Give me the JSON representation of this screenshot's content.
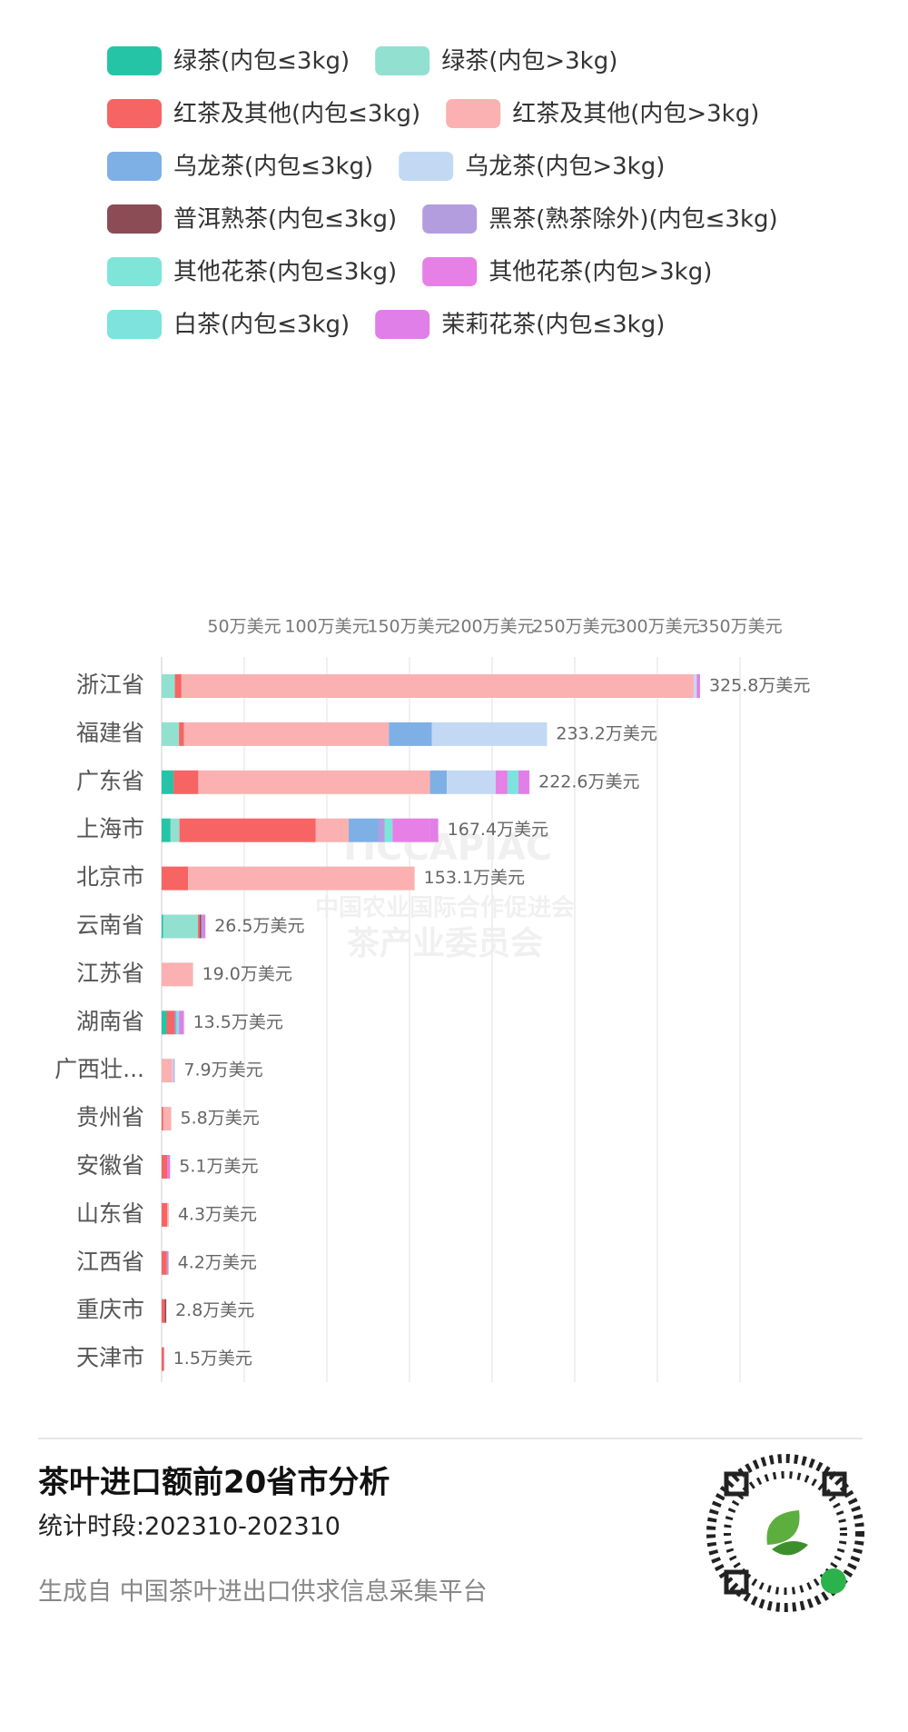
{
  "chart_data": {
    "type": "stacked-barh",
    "categories": [
      "浙江省",
      "福建省",
      "广东省",
      "上海市",
      "北京市",
      "云南省",
      "江苏省",
      "湖南省",
      "广西壮...",
      "贵州省",
      "安徽省",
      "山东省",
      "江西省",
      "重庆市",
      "天津市"
    ],
    "values": [
      325.8,
      233.2,
      222.6,
      167.4,
      153.1,
      26.5,
      19.0,
      13.5,
      7.9,
      5.8,
      5.1,
      4.3,
      4.2,
      2.8,
      1.5
    ],
    "value_labels": [
      "325.8万美元",
      "233.2万美元",
      "222.6万美元",
      "167.4万美元",
      "153.1万美元",
      "26.5万美元",
      "19.0万美元",
      "13.5万美元",
      "7.9万美元",
      "5.8万美元",
      "5.1万美元",
      "4.3万美元",
      "4.2万美元",
      "2.8万美元",
      "1.5万美元"
    ],
    "series": [
      {
        "name": "绿茶(内包≤3kg)",
        "color": "#26c4a6",
        "values": [
          0,
          0,
          7.2,
          5.4,
          0,
          1,
          0,
          3,
          0,
          0,
          0,
          0,
          0,
          0,
          0
        ]
      },
      {
        "name": "绿茶(内包>3kg)",
        "color": "#92e0d0",
        "values": [
          8,
          10.5,
          0,
          5.4,
          0,
          21,
          0,
          0,
          0,
          0,
          0,
          0,
          0,
          0,
          0
        ]
      },
      {
        "name": "红茶及其他(内包≤3kg)",
        "color": "#f76464",
        "values": [
          4,
          3,
          15.0,
          82.5,
          16,
          1,
          0,
          5,
          0,
          1,
          3.5,
          3.3,
          3.2,
          1.8,
          1.5
        ]
      },
      {
        "name": "红茶及其他(内包>3kg)",
        "color": "#fbb1b1",
        "values": [
          310,
          124,
          140.2,
          19.9,
          137.1,
          0,
          19.0,
          0,
          6.5,
          4.8,
          0,
          1.0,
          0,
          0,
          0
        ]
      },
      {
        "name": "乌龙茶(内包≤3kg)",
        "color": "#7eb0e6",
        "values": [
          0,
          26,
          10.2,
          18.1,
          0,
          0,
          0,
          1,
          0,
          0,
          0,
          0,
          0,
          0,
          0
        ]
      },
      {
        "name": "乌龙茶(内包>3kg)",
        "color": "#c3d9f3",
        "values": [
          1.8,
          69.7,
          29.5,
          0,
          0,
          0,
          0,
          0,
          0.8,
          0,
          0,
          0,
          0,
          0,
          0
        ]
      },
      {
        "name": "普洱熟茶(内包≤3kg)",
        "color": "#8c4c55",
        "values": [
          0,
          0,
          0,
          0,
          0,
          1,
          0,
          0,
          0,
          0,
          0,
          0,
          0,
          1.0,
          0
        ]
      },
      {
        "name": "黑茶(熟茶除外)(内包≤3kg)",
        "color": "#b39ddf",
        "values": [
          0,
          0,
          0,
          3.6,
          0,
          1,
          0,
          0,
          0.6,
          0,
          0,
          0,
          1.0,
          0,
          0
        ]
      },
      {
        "name": "其他花茶(内包≤3kg)",
        "color": "#7ee5d8",
        "values": [
          0,
          0,
          0,
          4.8,
          0,
          0,
          0,
          1.5,
          0,
          0,
          0,
          0,
          0,
          0,
          0
        ]
      },
      {
        "name": "其他花茶(内包>3kg)",
        "color": "#e680e6",
        "values": [
          0,
          0,
          7.2,
          22.9,
          0,
          0,
          0,
          0,
          0,
          0,
          0,
          0,
          0,
          0,
          0
        ]
      },
      {
        "name": "白茶(内包≤3kg)",
        "color": "#7de3dc",
        "values": [
          0,
          0,
          6.6,
          0,
          0,
          0,
          0,
          0,
          0,
          0,
          0,
          0,
          0,
          0,
          0
        ]
      },
      {
        "name": "茉莉花茶(内包≤3kg)",
        "color": "#e07fe8",
        "values": [
          2,
          0,
          6.7,
          4.8,
          0,
          1.5,
          0,
          3,
          0,
          0,
          1.6,
          0,
          0,
          0,
          0
        ]
      }
    ],
    "xlim": [
      0,
      350
    ],
    "xticks": [
      {
        "value": 50,
        "label": "50万美元"
      },
      {
        "value": 100,
        "label": "100万美元"
      },
      {
        "value": 150,
        "label": "150万美元"
      },
      {
        "value": 200,
        "label": "200万美元"
      },
      {
        "value": 250,
        "label": "250万美元"
      },
      {
        "value": 300,
        "label": "300万美元"
      },
      {
        "value": 350,
        "label": "350万美元"
      }
    ],
    "grid": true,
    "watermark": [
      "TICCAPIAC",
      "中国农业国际合作促进会",
      "茶产业委员会"
    ]
  },
  "footer": {
    "title": "茶叶进口额前20省市分析",
    "period": "统计时段:202310-202310",
    "source": "生成自 中国茶叶进出口供求信息采集平台"
  }
}
